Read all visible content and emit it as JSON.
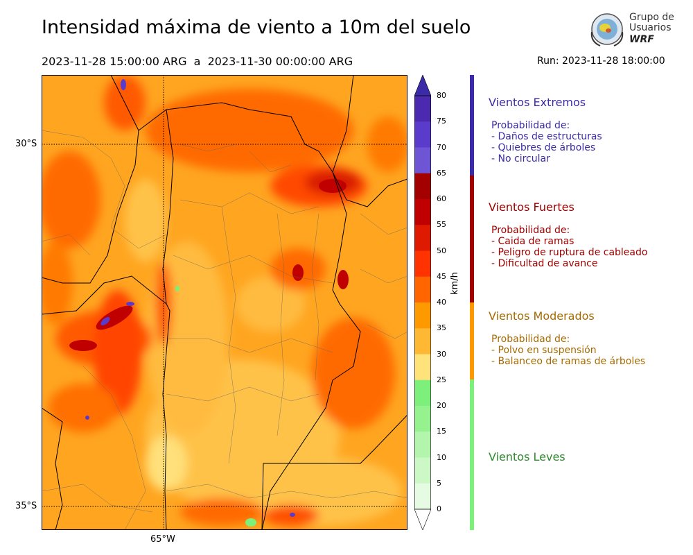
{
  "header": {
    "title": "Intensidad máxima de viento a 10m del suelo",
    "period": "2023-11-28 15:00:00 ARG  a  2023-11-30 00:00:00 ARG",
    "run": "Run: 2023-11-28 18:00:00"
  },
  "logo": {
    "line1": "Grupo de",
    "line2": "Usuarios",
    "brand": "WRF"
  },
  "map": {
    "lat_labels": [
      "30°S",
      "35°S"
    ],
    "lon_labels": [
      "65°W"
    ]
  },
  "colorbar": {
    "unit": "km/h",
    "ticks": [
      "80",
      "75",
      "70",
      "65",
      "60",
      "55",
      "50",
      "45",
      "40",
      "35",
      "30",
      "25",
      "20",
      "15",
      "10",
      "5",
      "0"
    ],
    "colors": [
      "#4b2ab0",
      "#5a3bcc",
      "#6e55d6",
      "#a30000",
      "#c00000",
      "#de1a00",
      "#ff3300",
      "#ff6600",
      "#ff9900",
      "#ffb833",
      "#ffe27a",
      "#7cf07a",
      "#96f28f",
      "#b3f5ad",
      "#ccf8c6",
      "#e6fce2"
    ]
  },
  "categories": [
    {
      "name": "Vientos Extremos",
      "color": "#3c2ba8",
      "desc": [
        "Probabilidad de:",
        "- Daños de estructuras",
        "- Quiebres de árboles",
        "- No circular"
      ]
    },
    {
      "name": "Vientos Fuertes",
      "color": "#a00000",
      "desc": [
        "Probabilidad de:",
        "- Caida de ramas",
        "- Peligro de ruptura de cableado",
        "- Dificultad de avance"
      ]
    },
    {
      "name": "Vientos Moderados",
      "color": "#a66a00",
      "desc": [
        "Probabilidad de:",
        "- Polvo en suspensión",
        "- Balanceo de ramas de árboles"
      ]
    },
    {
      "name": "Vientos Leves",
      "color": "#2e8b2e",
      "desc": []
    }
  ]
}
